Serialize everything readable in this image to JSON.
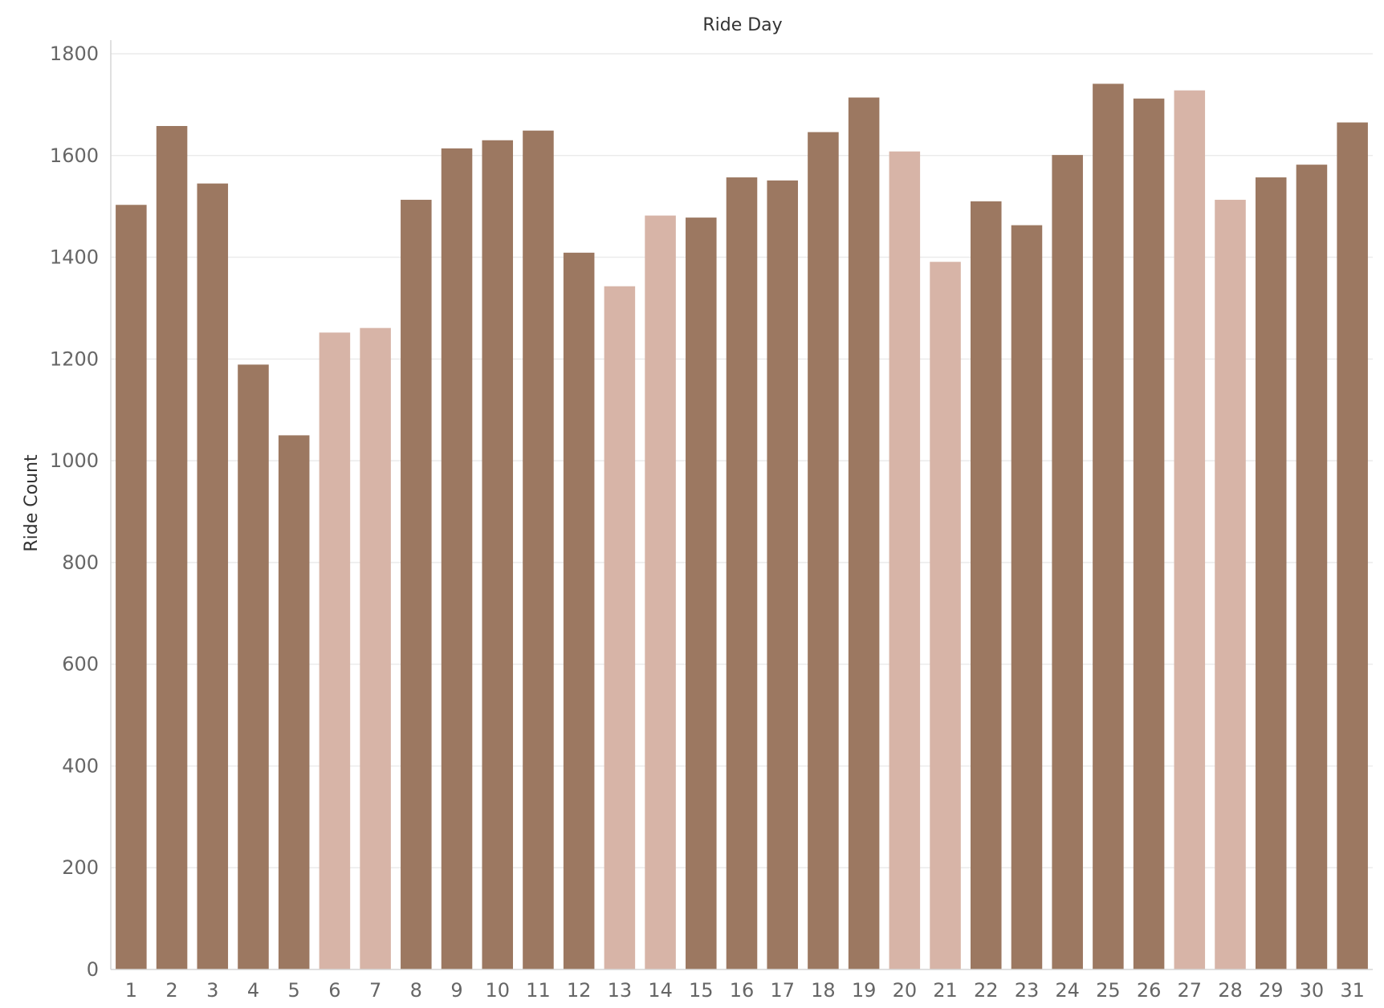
{
  "chart_data": {
    "type": "bar",
    "title": "Ride Day",
    "xlabel": "",
    "ylabel": "Ride Count",
    "ylim": [
      0,
      1800
    ],
    "yticks": [
      0,
      200,
      400,
      600,
      800,
      1000,
      1200,
      1400,
      1600,
      1800
    ],
    "grid": true,
    "categories": [
      "1",
      "2",
      "3",
      "4",
      "5",
      "6",
      "7",
      "8",
      "9",
      "10",
      "11",
      "12",
      "13",
      "14",
      "15",
      "16",
      "17",
      "18",
      "19",
      "20",
      "21",
      "22",
      "23",
      "24",
      "25",
      "26",
      "27",
      "28",
      "29",
      "30",
      "31"
    ],
    "values": [
      1503,
      1658,
      1545,
      1189,
      1050,
      1252,
      1261,
      1513,
      1614,
      1630,
      1649,
      1409,
      1343,
      1482,
      1478,
      1557,
      1551,
      1646,
      1714,
      1608,
      1391,
      1510,
      1463,
      1601,
      1741,
      1712,
      1728,
      1513,
      1557,
      1582,
      1665
    ],
    "weekend": [
      false,
      false,
      false,
      false,
      false,
      true,
      true,
      false,
      false,
      false,
      false,
      false,
      true,
      true,
      false,
      false,
      false,
      false,
      false,
      true,
      true,
      false,
      false,
      false,
      false,
      false,
      true,
      true,
      false,
      false,
      false
    ],
    "colors": {
      "weekday": "#9c7861",
      "weekend": "#d7b4a7"
    }
  }
}
